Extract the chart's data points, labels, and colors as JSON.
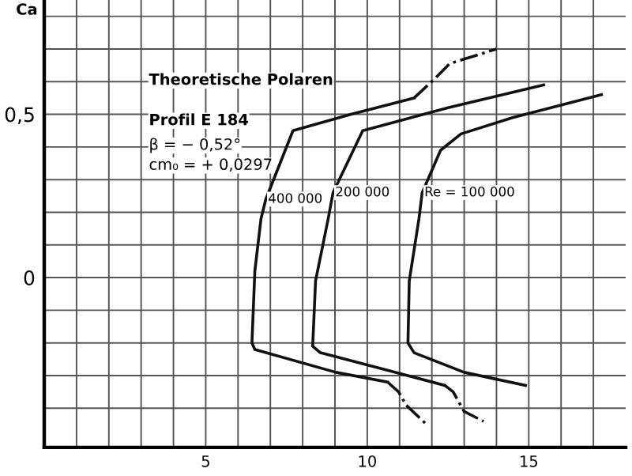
{
  "chart_data": {
    "type": "line",
    "ylabel": "Ca",
    "annotations": [
      "Theoretische Polaren",
      "Profil E 184",
      "β = − 0,52°",
      "cm₀ = + 0,0297",
      {
        "text": "400 000",
        "x": 6.86,
        "y": 0.24
      },
      {
        "text": "200 000",
        "x": 8.94,
        "y": 0.26
      },
      {
        "text": "Re = 100 000",
        "x": 11.7,
        "y": 0.26
      }
    ],
    "series": [
      {
        "color": "#111111",
        "line_style": "solid",
        "x": [
          10.63,
          9.03,
          6.52,
          6.43,
          6.52,
          6.71,
          6.86,
          7.7,
          9.5,
          11.45
        ],
        "values": [
          -0.32,
          -0.29,
          -0.22,
          -0.2,
          0.02,
          0.18,
          0.24,
          0.45,
          0.5,
          0.55
        ]
      },
      {
        "color": "#111111",
        "line_style": "dashed",
        "x": [
          11.45,
          12.1,
          12.55,
          14.0
        ],
        "values": [
          0.55,
          0.61,
          0.655,
          0.7
        ]
      },
      {
        "color": "#111111",
        "line_style": "dashed",
        "x": [
          10.63,
          10.97,
          11.2,
          11.84
        ],
        "values": [
          -0.32,
          -0.35,
          -0.39,
          -0.45
        ]
      },
      {
        "color": "#111111",
        "line_style": "solid",
        "x": [
          12.4,
          8.55,
          8.31,
          8.4,
          8.79,
          8.94,
          9.86,
          12.5,
          15.46
        ],
        "values": [
          -0.33,
          -0.23,
          -0.21,
          -0.01,
          0.18,
          0.26,
          0.45,
          0.52,
          0.59
        ]
      },
      {
        "color": "#111111",
        "line_style": "dashed",
        "x": [
          12.4,
          12.66,
          13.0,
          13.6
        ],
        "values": [
          -0.33,
          -0.35,
          -0.41,
          -0.44
        ]
      },
      {
        "color": "#111111",
        "line_style": "solid",
        "x": [
          14.9,
          13.0,
          11.45,
          11.26,
          11.3,
          11.6,
          11.7,
          12.27,
          12.9,
          14.5,
          17.25
        ],
        "values": [
          -0.33,
          -0.29,
          -0.23,
          -0.2,
          -0.01,
          0.18,
          0.26,
          0.39,
          0.44,
          0.49,
          0.56
        ]
      }
    ],
    "xlim": [
      0,
      18
    ],
    "ylim": [
      -0.52,
      0.85
    ],
    "xticks": [
      {
        "value": 1,
        "label": null
      },
      {
        "value": 2,
        "label": null
      },
      {
        "value": 3,
        "label": null
      },
      {
        "value": 4,
        "label": null
      },
      5,
      {
        "value": 6,
        "label": null
      },
      {
        "value": 7,
        "label": null
      },
      {
        "value": 8,
        "label": null
      },
      {
        "value": 9,
        "label": null
      },
      10,
      {
        "value": 11,
        "label": null
      },
      {
        "value": 12,
        "label": null
      },
      {
        "value": 13,
        "label": null
      },
      {
        "value": 14,
        "label": null
      },
      15,
      {
        "value": 16,
        "label": null
      },
      {
        "value": 17,
        "label": null
      }
    ],
    "yticks": [
      {
        "value": -0.4,
        "label": null
      },
      {
        "value": -0.3,
        "label": null
      },
      {
        "value": -0.2,
        "label": null
      },
      {
        "value": -0.1,
        "label": null
      },
      {
        "value": 0,
        "label": "0"
      },
      {
        "value": 0.1,
        "label": null
      },
      {
        "value": 0.2,
        "label": null
      },
      {
        "value": 0.3,
        "label": null
      },
      {
        "value": 0.4,
        "label": null
      },
      {
        "value": 0.5,
        "label": "0,5"
      },
      {
        "value": 0.6,
        "label": null
      },
      {
        "value": 0.7,
        "label": null
      },
      {
        "value": 0.8,
        "label": null
      }
    ],
    "grid": true,
    "marker": "none"
  }
}
